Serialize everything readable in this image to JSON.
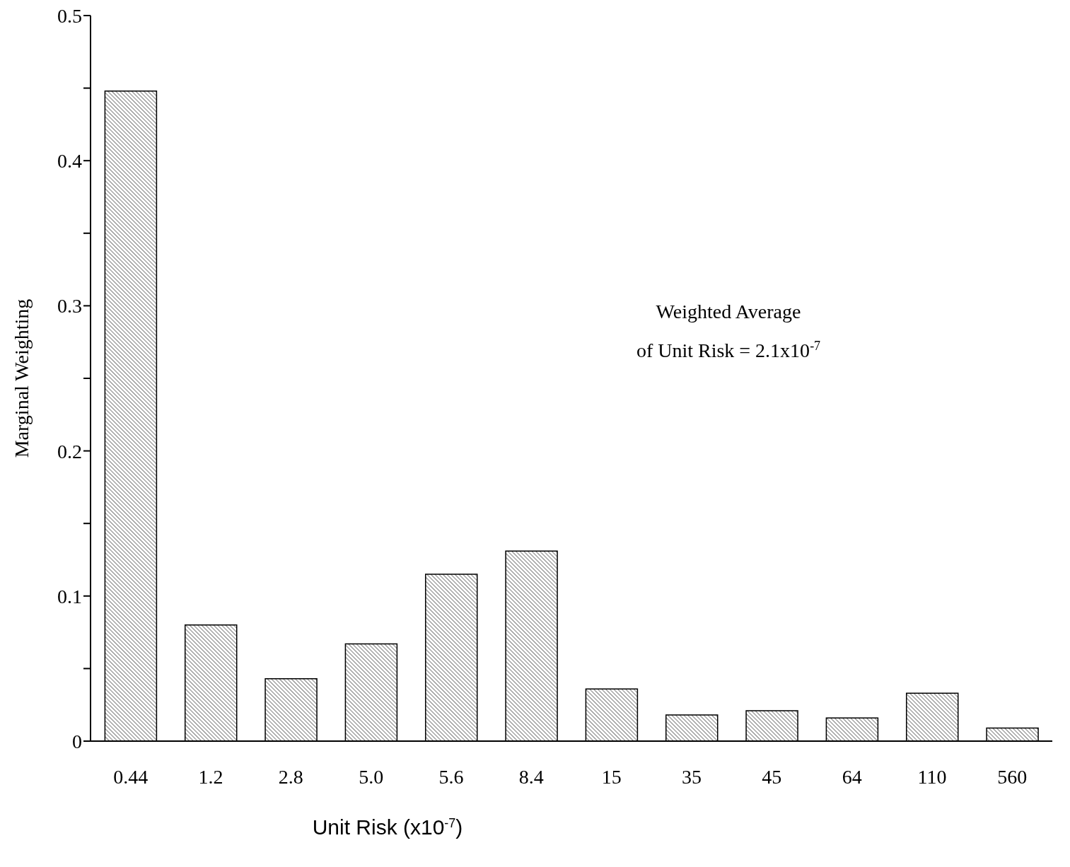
{
  "chart_data": {
    "type": "bar",
    "xlabel": "Unit Risk (x10$^{-7}$)",
    "ylabel": "Marginal Weighting",
    "annotations": [
      "Weighted Average\nof Unit Risk = 2.1x10$^{-7}$"
    ],
    "categories": [
      "0.44",
      "1.2",
      "2.8",
      "5.0",
      "5.6",
      "8.4",
      "15",
      "35",
      "45",
      "64",
      "110",
      "560"
    ],
    "values": [
      0.448,
      0.08,
      0.043,
      0.067,
      0.115,
      0.131,
      0.036,
      0.018,
      0.021,
      0.016,
      0.033,
      0.009
    ],
    "color": "#000000",
    "ylim": [
      0,
      0.5
    ],
    "yticks": [
      0,
      {
        "value": 0.05,
        "label": null
      },
      0.1,
      {
        "value": 0.15,
        "label": null
      },
      0.2,
      {
        "value": 0.25,
        "label": null
      },
      0.3,
      {
        "value": 0.35,
        "label": null
      },
      0.4,
      {
        "value": 0.45,
        "label": null
      },
      0.5
    ],
    "grid": false,
    "legend": false
  }
}
